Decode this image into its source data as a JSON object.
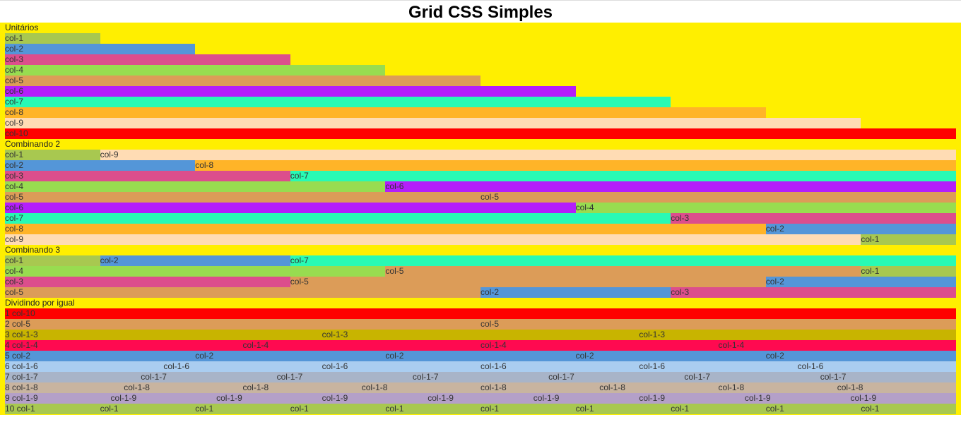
{
  "page": {
    "title": "Grid CSS Simples"
  },
  "colors": {
    "col1": "#a8c850",
    "col2": "#5496d8",
    "col3": "#dc4e8c",
    "col4": "#98dc50",
    "col5": "#dc9c58",
    "col6": "#b41efa",
    "col7": "#28fab4",
    "col8": "#ffb428",
    "col9": "#ffdcb4",
    "col10": "#ff0000",
    "div3": "#c8b400",
    "div4": "#ff0a50",
    "div6": "#aacdf0",
    "div7": "#a8b4c8",
    "div8": "#c8b4a0",
    "div9": "#b4a0c8",
    "background": "#ffef00"
  },
  "sections": [
    {
      "title": "Unitários",
      "rows": [
        [
          {
            "label": "col-1",
            "span": 1,
            "color": "col1"
          }
        ],
        [
          {
            "label": "col-2",
            "span": 2,
            "color": "col2"
          }
        ],
        [
          {
            "label": "col-3",
            "span": 3,
            "color": "col3"
          }
        ],
        [
          {
            "label": "col-4",
            "span": 4,
            "color": "col4"
          }
        ],
        [
          {
            "label": "col-5",
            "span": 5,
            "color": "col5"
          }
        ],
        [
          {
            "label": "col-6",
            "span": 6,
            "color": "col6"
          }
        ],
        [
          {
            "label": "col-7",
            "span": 7,
            "color": "col7"
          }
        ],
        [
          {
            "label": "col-8",
            "span": 8,
            "color": "col8"
          }
        ],
        [
          {
            "label": "col-9",
            "span": 9,
            "color": "col9"
          }
        ],
        [
          {
            "label": "col-10",
            "span": 10,
            "color": "col10"
          }
        ]
      ]
    },
    {
      "title": "Combinando 2",
      "rows": [
        [
          {
            "label": "col-1",
            "span": 1,
            "color": "col1"
          },
          {
            "label": "col-9",
            "span": 9,
            "color": "col9"
          }
        ],
        [
          {
            "label": "col-2",
            "span": 2,
            "color": "col2"
          },
          {
            "label": "col-8",
            "span": 8,
            "color": "col8"
          }
        ],
        [
          {
            "label": "col-3",
            "span": 3,
            "color": "col3"
          },
          {
            "label": "col-7",
            "span": 7,
            "color": "col7"
          }
        ],
        [
          {
            "label": "col-4",
            "span": 4,
            "color": "col4"
          },
          {
            "label": "col-6",
            "span": 6,
            "color": "col6"
          }
        ],
        [
          {
            "label": "col-5",
            "span": 5,
            "color": "col5"
          },
          {
            "label": "col-5",
            "span": 5,
            "color": "col5"
          }
        ],
        [
          {
            "label": "col-6",
            "span": 6,
            "color": "col6"
          },
          {
            "label": "col-4",
            "span": 4,
            "color": "col4"
          }
        ],
        [
          {
            "label": "col-7",
            "span": 7,
            "color": "col7"
          },
          {
            "label": "col-3",
            "span": 3,
            "color": "col3"
          }
        ],
        [
          {
            "label": "col-8",
            "span": 8,
            "color": "col8"
          },
          {
            "label": "col-2",
            "span": 2,
            "color": "col2"
          }
        ],
        [
          {
            "label": "col-9",
            "span": 9,
            "color": "col9"
          },
          {
            "label": "col-1",
            "span": 1,
            "color": "col1"
          }
        ]
      ]
    },
    {
      "title": "Combinando 3",
      "rows": [
        [
          {
            "label": "col-1",
            "span": 1,
            "color": "col1"
          },
          {
            "label": "col-2",
            "span": 2,
            "color": "col2"
          },
          {
            "label": "col-7",
            "span": 7,
            "color": "col7"
          }
        ],
        [
          {
            "label": "col-4",
            "span": 4,
            "color": "col4"
          },
          {
            "label": "col-5",
            "span": 5,
            "color": "col5"
          },
          {
            "label": "col-1",
            "span": 1,
            "color": "col1"
          }
        ],
        [
          {
            "label": "col-3",
            "span": 3,
            "color": "col3"
          },
          {
            "label": "col-5",
            "span": 5,
            "color": "col5"
          },
          {
            "label": "col-2",
            "span": 2,
            "color": "col2"
          }
        ],
        [
          {
            "label": "col-5",
            "span": 5,
            "color": "col5"
          },
          {
            "label": "col-2",
            "span": 2,
            "color": "col2"
          },
          {
            "label": "col-3",
            "span": 3,
            "color": "col3"
          }
        ]
      ]
    },
    {
      "title": "Dividindo por igual",
      "equal_rows": [
        {
          "count": 1,
          "labels": [
            "1 col-10"
          ],
          "color": "col10"
        },
        {
          "count": 2,
          "labels": [
            "2 col-5",
            "col-5"
          ],
          "color": "col5"
        },
        {
          "count": 3,
          "labels": [
            "3 col-1-3",
            "col-1-3",
            "col-1-3"
          ],
          "color": "div3"
        },
        {
          "count": 4,
          "labels": [
            "4 col-1-4",
            "col-1-4",
            "col-1-4",
            "col-1-4"
          ],
          "color": "div4"
        },
        {
          "count": 5,
          "labels": [
            "5 col-2",
            "col-2",
            "col-2",
            "col-2",
            "col-2"
          ],
          "color": "col2"
        },
        {
          "count": 6,
          "labels": [
            "6 col-1-6",
            "col-1-6",
            "col-1-6",
            "col-1-6",
            "col-1-6",
            "col-1-6"
          ],
          "color": "div6"
        },
        {
          "count": 7,
          "labels": [
            "7 col-1-7",
            "col-1-7",
            "col-1-7",
            "col-1-7",
            "col-1-7",
            "col-1-7",
            "col-1-7"
          ],
          "color": "div7"
        },
        {
          "count": 8,
          "labels": [
            "8 col-1-8",
            "col-1-8",
            "col-1-8",
            "col-1-8",
            "col-1-8",
            "col-1-8",
            "col-1-8",
            "col-1-8"
          ],
          "color": "div8"
        },
        {
          "count": 9,
          "labels": [
            "9 col-1-9",
            "col-1-9",
            "col-1-9",
            "col-1-9",
            "col-1-9",
            "col-1-9",
            "col-1-9",
            "col-1-9",
            "col-1-9"
          ],
          "color": "div9"
        },
        {
          "count": 10,
          "labels": [
            "10 col-1",
            "col-1",
            "col-1",
            "col-1",
            "col-1",
            "col-1",
            "col-1",
            "col-1",
            "col-1",
            "col-1"
          ],
          "color": "col1"
        }
      ]
    }
  ]
}
